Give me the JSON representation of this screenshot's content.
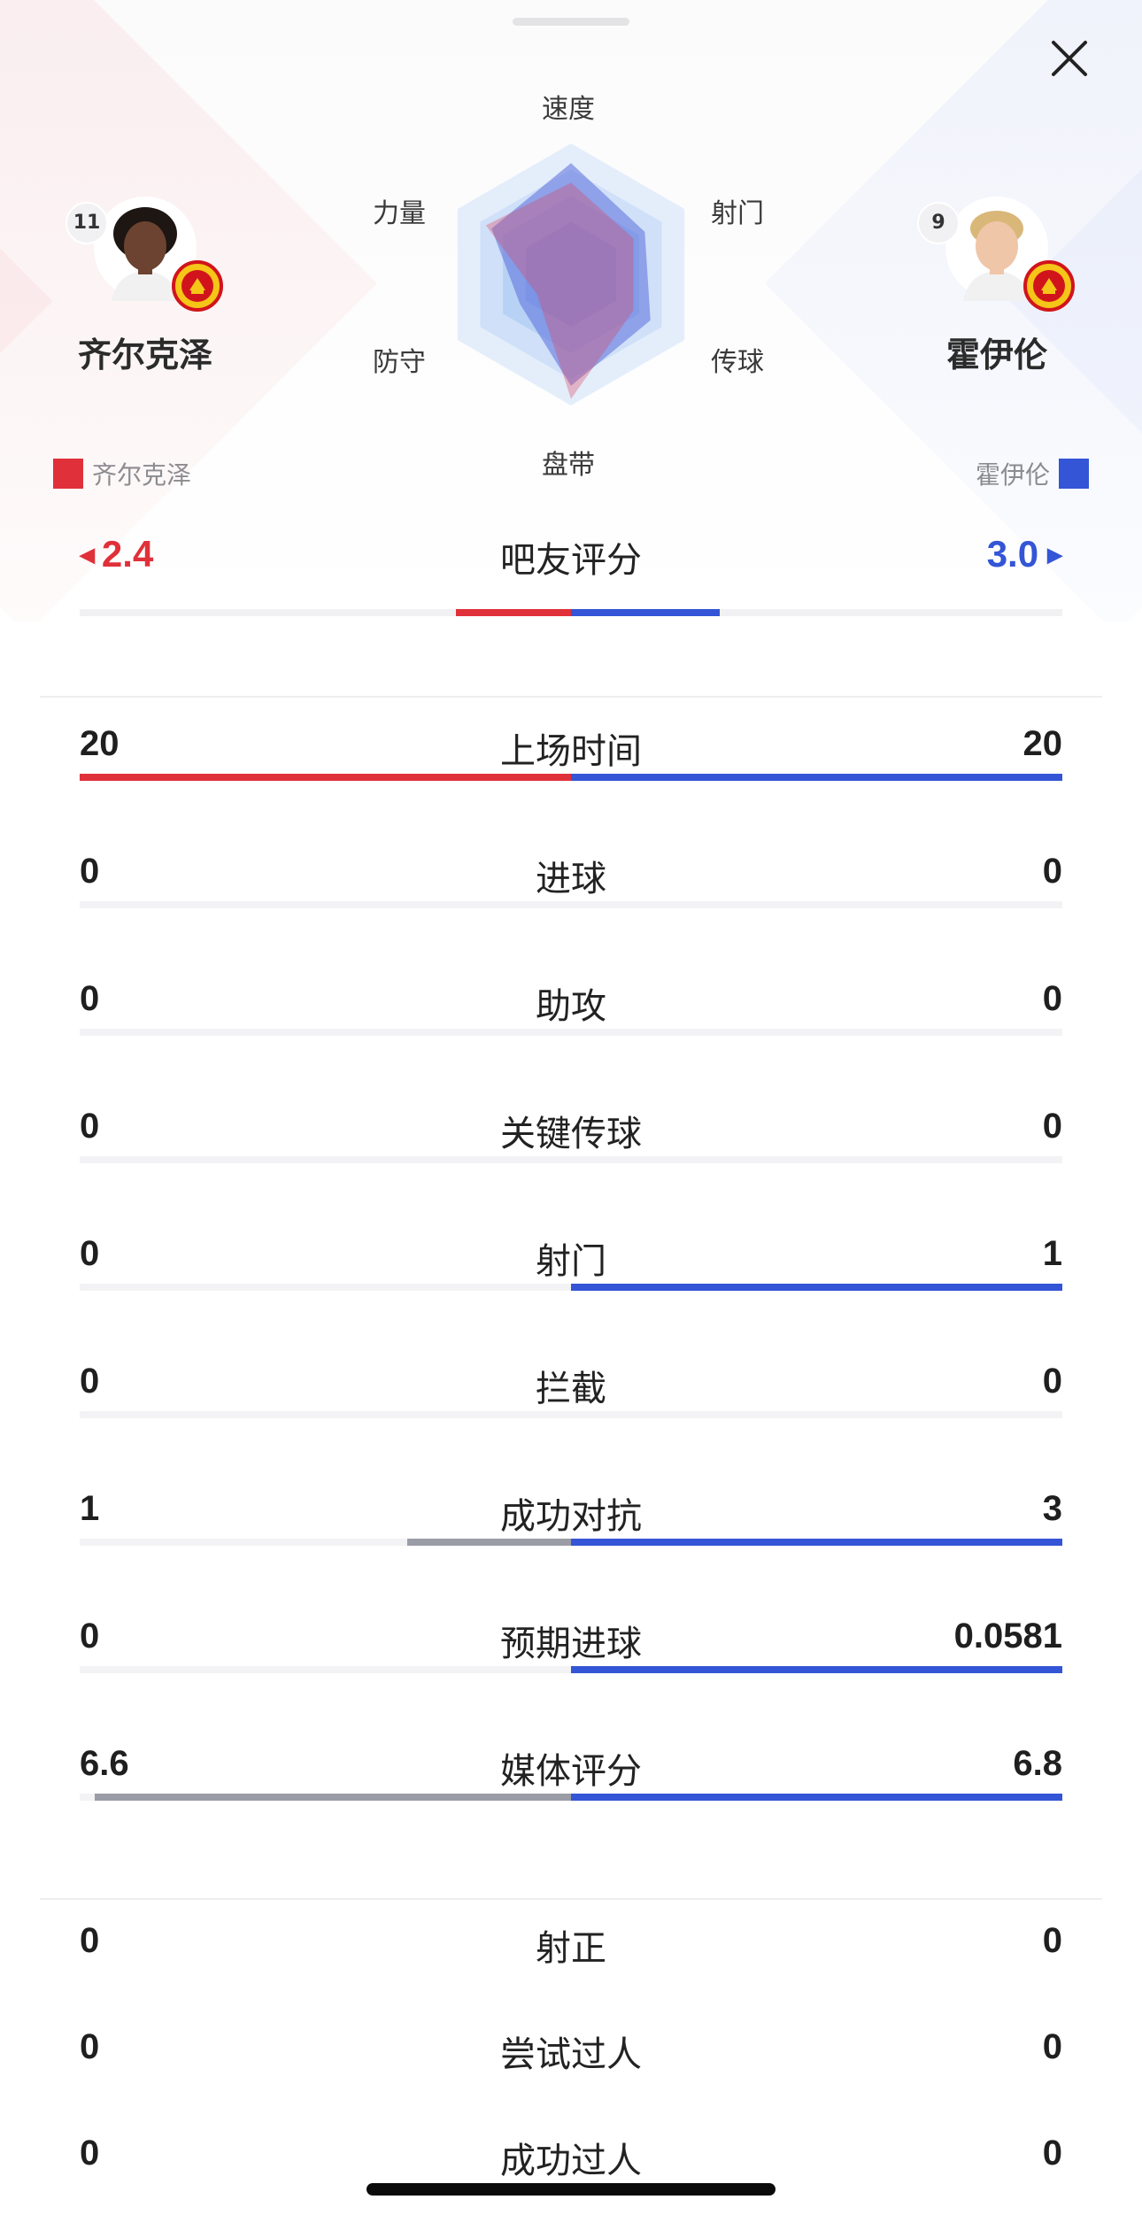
{
  "header": {
    "close_icon": "close-icon"
  },
  "players": {
    "left": {
      "number": "11",
      "name": "齐尔克泽",
      "legend": "齐尔克泽",
      "color": "#e0303a",
      "rating": "2.4"
    },
    "right": {
      "number": "9",
      "name": "霍伊伦",
      "legend": "霍伊伦",
      "color": "#3355d6",
      "rating": "3.0"
    }
  },
  "radar": {
    "labels": {
      "speed": "速度",
      "shooting": "射门",
      "passing": "传球",
      "dribbling": "盘带",
      "defense": "防守",
      "strength": "力量"
    },
    "axes_order": [
      "速度",
      "射门",
      "传球",
      "盘带",
      "防守",
      "力量"
    ],
    "left_values": [
      0.7,
      0.55,
      0.55,
      0.95,
      0.3,
      0.75
    ],
    "right_values": [
      0.85,
      0.65,
      0.7,
      0.85,
      0.45,
      0.7
    ]
  },
  "rating": {
    "title": "吧友评分",
    "left_share": 0.444,
    "right_share": 0.556
  },
  "stats": [
    {
      "label": "上场时间",
      "left": "20",
      "right": "20",
      "left_frac": 1.0,
      "right_frac": 1.0,
      "left_color": "#e0303a"
    },
    {
      "label": "进球",
      "left": "0",
      "right": "0",
      "left_frac": 0,
      "right_frac": 0,
      "left_color": "#9a9ca6"
    },
    {
      "label": "助攻",
      "left": "0",
      "right": "0",
      "left_frac": 0,
      "right_frac": 0,
      "left_color": "#9a9ca6"
    },
    {
      "label": "关键传球",
      "left": "0",
      "right": "0",
      "left_frac": 0,
      "right_frac": 0,
      "left_color": "#9a9ca6"
    },
    {
      "label": "射门",
      "left": "0",
      "right": "1",
      "left_frac": 0,
      "right_frac": 1.0,
      "left_color": "#9a9ca6"
    },
    {
      "label": "拦截",
      "left": "0",
      "right": "0",
      "left_frac": 0,
      "right_frac": 0,
      "left_color": "#9a9ca6"
    },
    {
      "label": "成功对抗",
      "left": "1",
      "right": "3",
      "left_frac": 0.333,
      "right_frac": 1.0,
      "left_color": "#9a9ca6"
    },
    {
      "label": "预期进球",
      "left": "0",
      "right": "0.0581",
      "left_frac": 0,
      "right_frac": 1.0,
      "left_color": "#9a9ca6"
    },
    {
      "label": "媒体评分",
      "left": "6.6",
      "right": "6.8",
      "left_frac": 0.97,
      "right_frac": 1.0,
      "left_color": "#9a9ca6"
    }
  ],
  "stats_plain": [
    {
      "label": "射正",
      "left": "0",
      "right": "0"
    },
    {
      "label": "尝试过人",
      "left": "0",
      "right": "0"
    },
    {
      "label": "成功过人",
      "left": "0",
      "right": "0"
    }
  ]
}
